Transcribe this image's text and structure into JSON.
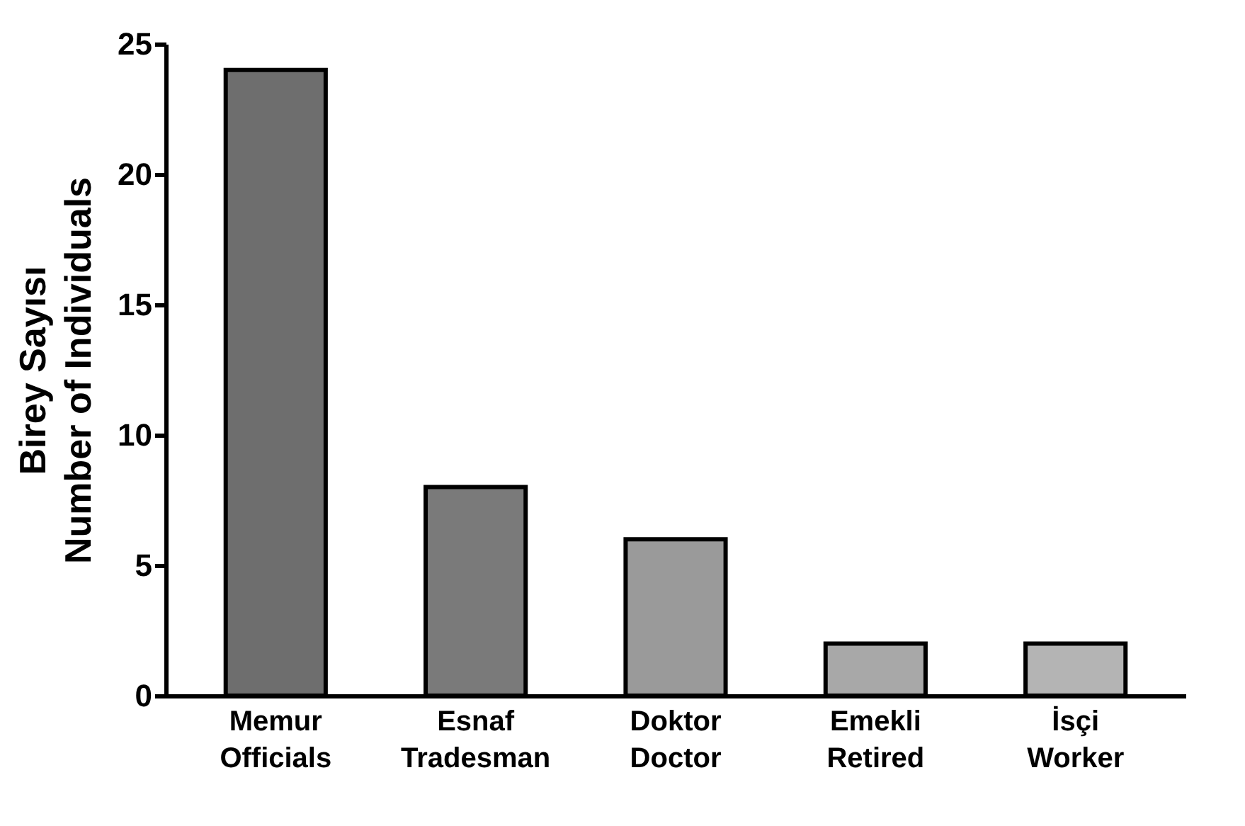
{
  "chart_data": {
    "type": "bar",
    "ylabel": "Birey Sayısı\nNumber of Individuals",
    "categories": [
      "Memur\nOfficials",
      "Esnaf\nTradesman",
      "Doktor\nDoctor",
      "Emekli\nRetired",
      "İsçi\nWorker"
    ],
    "values": [
      24,
      8,
      6,
      2,
      2
    ],
    "colors": [
      "#6e6e6e",
      "#7a7a7a",
      "#9a9a9a",
      "#a8a8a8",
      "#b4b4b4"
    ],
    "ylim": [
      0,
      25
    ],
    "yticks": [
      0,
      5,
      10,
      15,
      20,
      25
    ],
    "grid": false
  }
}
